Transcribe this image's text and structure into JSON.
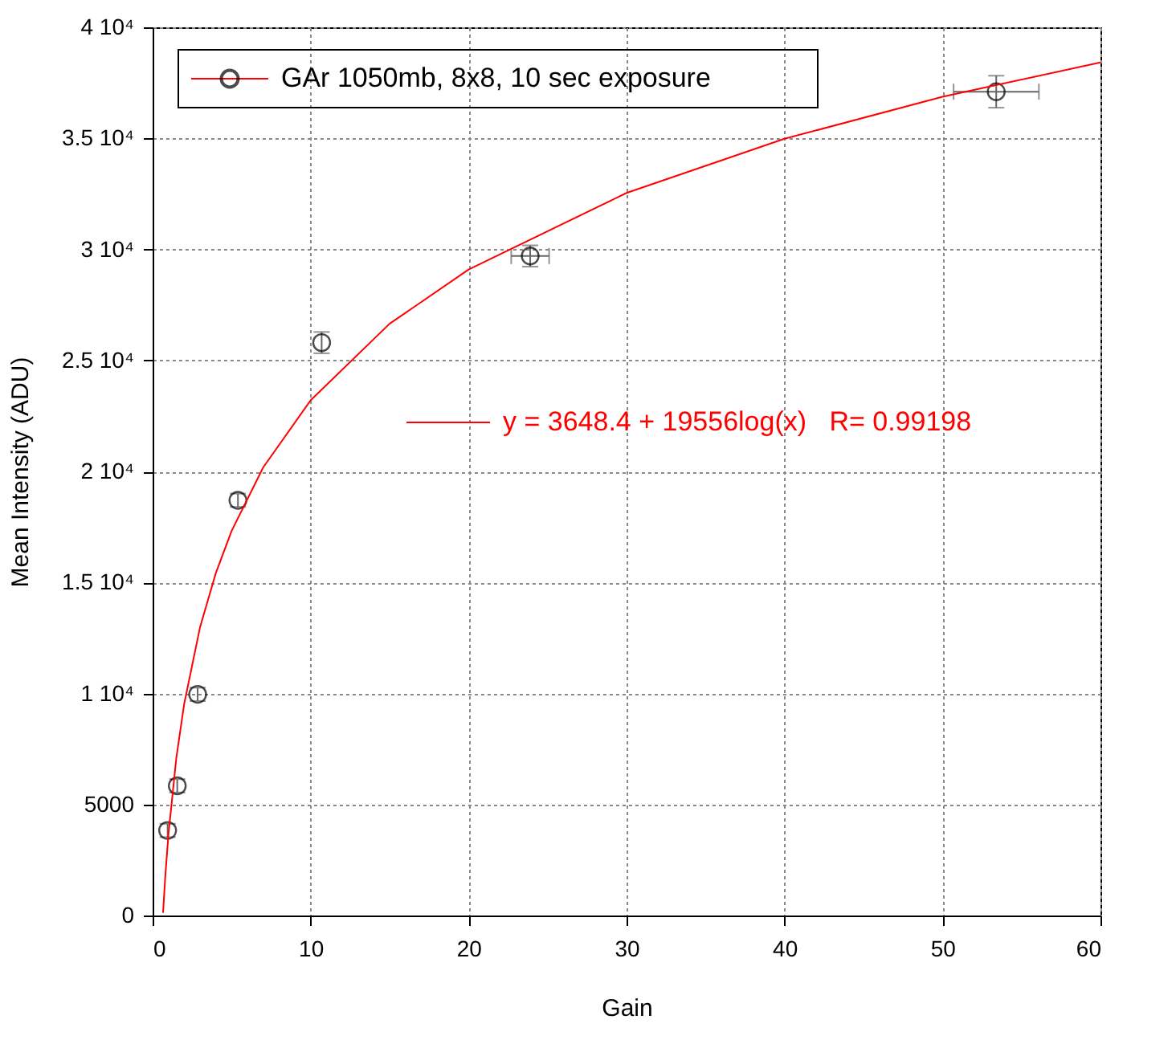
{
  "chart_data": {
    "type": "scatter",
    "xlabel": "Gain",
    "ylabel": "Mean Intensity (ADU)",
    "xlim": [
      0,
      60
    ],
    "xticks": [
      0,
      10,
      20,
      30,
      40,
      50,
      60
    ],
    "ylim": [
      0,
      40000
    ],
    "yticks": [
      0,
      5000,
      {
        "value": 10000,
        "label": "1 10⁴"
      },
      {
        "value": 15000,
        "label": "1.5 10⁴"
      },
      {
        "value": 20000,
        "label": "2 10⁴"
      },
      {
        "value": 25000,
        "label": "2.5 10⁴"
      },
      {
        "value": 30000,
        "label": "3 10⁴"
      },
      {
        "value": 35000,
        "label": "3.5 10⁴"
      },
      {
        "value": 40000,
        "label": "4 10⁴"
      }
    ],
    "grid": true,
    "legend": "top left",
    "series": [
      {
        "name": "GAr 1050mb, 8x8, 10 sec exposure",
        "color": "#000000",
        "marker": "circle",
        "x": [
          0.95,
          1.56,
          2.85,
          5.4,
          10.7,
          23.9,
          53.4
        ],
        "values": [
          3830,
          5840,
          9960,
          18700,
          25800,
          29700,
          37100
        ],
        "errors": [
          300,
          300,
          300,
          300,
          480,
          480,
          720
        ],
        "xerrors": [
          null,
          null,
          null,
          null,
          null,
          1.2,
          2.7
        ]
      },
      {
        "name": "y = 3648.4 + 19556log(x)   R= 0.99198",
        "type": "line",
        "color": "#ff0000",
        "line_style": "solid",
        "marker": "none",
        "x": [
          0.66,
          0.8,
          1,
          1.5,
          2,
          3,
          4,
          5,
          7,
          10,
          15,
          20,
          30,
          40,
          50,
          60
        ],
        "values": [
          120,
          1750,
          3650,
          7090,
          9540,
          12980,
          15420,
          17320,
          20180,
          23200,
          26650,
          29090,
          32540,
          34980,
          36870,
          38420
        ]
      }
    ]
  }
}
